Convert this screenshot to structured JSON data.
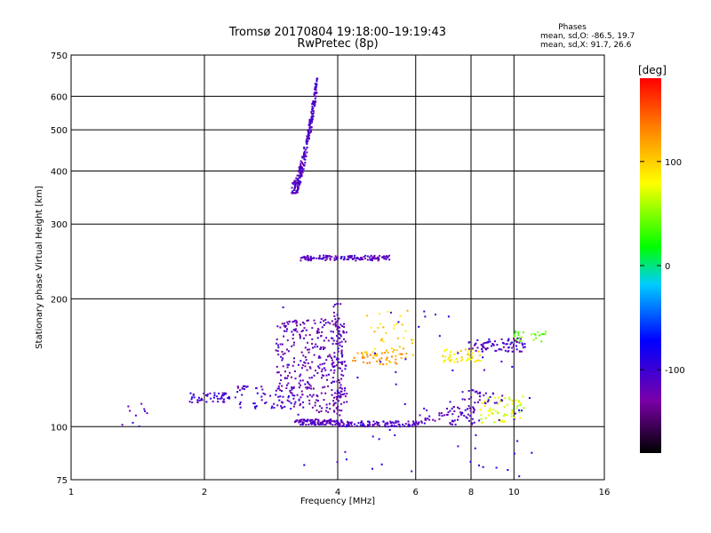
{
  "title": "Tromsø 20170804 19:18:00–19:19:43",
  "subtitle": "RwPretec (8p)",
  "stats": {
    "heading": "Phases",
    "line_o": "mean, sd,O: -86.5, 19.7",
    "line_x": "mean, sd,X:  91.7, 26.6"
  },
  "chart_data": {
    "type": "scatter",
    "title": "Tromsø 20170804 19:18:00–19:19:43",
    "subtitle": "RwPretec (8p)",
    "xlabel": "Frequency [MHz]",
    "ylabel": "Stationary phase Virtual Height [km]",
    "xscale": "log",
    "yscale": "log",
    "xlim": [
      1,
      16
    ],
    "ylim": [
      75,
      750
    ],
    "xticks": [
      1,
      2,
      4,
      6,
      8,
      10,
      16
    ],
    "yticks": [
      75,
      100,
      200,
      300,
      400,
      500,
      600,
      750
    ],
    "grid": true,
    "colorbar": {
      "label": "[deg]",
      "range": [
        -180,
        180
      ],
      "ticks": [
        100,
        0,
        -100
      ],
      "colormap": "rainbow"
    },
    "clusters": [
      {
        "x": [
          3.15,
          3.6
        ],
        "y": [
          355,
          660
        ],
        "phase": -110,
        "n": 260,
        "kind": "band",
        "curve": "exp"
      },
      {
        "x": [
          3.3,
          5.3
        ],
        "y": [
          246,
          253
        ],
        "phase": -112,
        "n": 130,
        "kind": "band"
      },
      {
        "x": [
          3.2,
          4.0
        ],
        "y": [
          101,
          104
        ],
        "phase": -115,
        "n": 100,
        "kind": "band"
      },
      {
        "x": [
          4.0,
          6.1
        ],
        "y": [
          100,
          103
        ],
        "phase": -108,
        "n": 110,
        "kind": "band"
      },
      {
        "x": [
          6.1,
          8.4
        ],
        "y": [
          101,
          112
        ],
        "phase": -112,
        "n": 70,
        "kind": "band"
      },
      {
        "x": [
          1.85,
          2.35
        ],
        "y": [
          114,
          120
        ],
        "phase": -105,
        "n": 50,
        "kind": "band"
      },
      {
        "x": [
          2.35,
          3.2
        ],
        "y": [
          110,
          125
        ],
        "phase": -108,
        "n": 60,
        "kind": "cloud"
      },
      {
        "x": [
          2.9,
          4.2
        ],
        "y": [
          108,
          180
        ],
        "phase": -120,
        "n": 320,
        "kind": "cloud"
      },
      {
        "x": [
          3.9,
          4.1
        ],
        "y": [
          100,
          195
        ],
        "phase": -115,
        "n": 80,
        "kind": "cloud"
      },
      {
        "x": [
          4.3,
          5.6
        ],
        "y": [
          140,
          150
        ],
        "phase": 120,
        "n": 45,
        "kind": "cloud"
      },
      {
        "x": [
          4.6,
          6.0
        ],
        "y": [
          145,
          190
        ],
        "phase": 100,
        "n": 40,
        "kind": "cloud"
      },
      {
        "x": [
          6.9,
          8.4
        ],
        "y": [
          142,
          152
        ],
        "phase": 90,
        "n": 45,
        "kind": "band"
      },
      {
        "x": [
          7.9,
          10.6
        ],
        "y": [
          150,
          162
        ],
        "phase": -110,
        "n": 80,
        "kind": "band"
      },
      {
        "x": [
          10.0,
          11.8
        ],
        "y": [
          158,
          168
        ],
        "phase": 40,
        "n": 25,
        "kind": "band"
      },
      {
        "x": [
          8.4,
          10.6
        ],
        "y": [
          102,
          118
        ],
        "phase": 75,
        "n": 60,
        "kind": "cloud"
      },
      {
        "x": [
          7.6,
          9.5
        ],
        "y": [
          113,
          122
        ],
        "phase": -112,
        "n": 30,
        "kind": "band"
      },
      {
        "x": [
          1.3,
          1.5
        ],
        "y": [
          100,
          115
        ],
        "phase": -110,
        "n": 10,
        "kind": "cloud"
      },
      {
        "x": [
          3.0,
          11.0
        ],
        "y": [
          76,
          200
        ],
        "phase": -95,
        "n": 70,
        "kind": "cloud"
      }
    ]
  }
}
